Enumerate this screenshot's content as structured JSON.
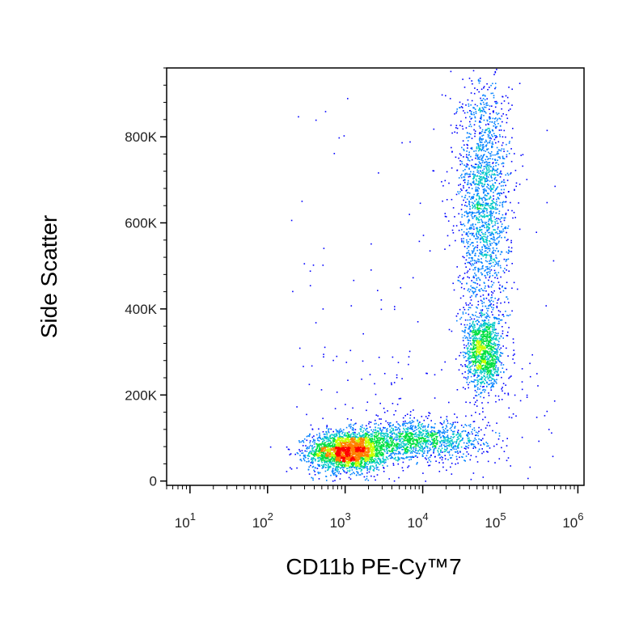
{
  "chart_data": {
    "type": "scatter",
    "title": "",
    "xlabel": "CD11b PE-Cy™7",
    "ylabel": "Side Scatter",
    "x_scale": "log",
    "x_range": [
      5,
      1200000
    ],
    "y_range": [
      -10000,
      960000
    ],
    "x_ticks": [
      {
        "base": "10",
        "exp": "1",
        "value": 10
      },
      {
        "base": "10",
        "exp": "2",
        "value": 100
      },
      {
        "base": "10",
        "exp": "3",
        "value": 1000
      },
      {
        "base": "10",
        "exp": "4",
        "value": 10000
      },
      {
        "base": "10",
        "exp": "5",
        "value": 100000
      },
      {
        "base": "10",
        "exp": "6",
        "value": 1000000
      }
    ],
    "y_ticks": [
      {
        "label": "0",
        "value": 0
      },
      {
        "label": "200K",
        "value": 200000
      },
      {
        "label": "400K",
        "value": 400000
      },
      {
        "label": "600K",
        "value": 600000
      },
      {
        "label": "800K",
        "value": 800000
      }
    ],
    "grid": false,
    "color_scale": [
      "#0000ff",
      "#0080ff",
      "#00c8c8",
      "#00e040",
      "#c8ff00",
      "#ff8000",
      "#ff0000"
    ],
    "populations": [
      {
        "name": "",
        "x_center": 1100,
        "y_center": 70000,
        "x_spread_decades": 0.25,
        "y_spread": 22000,
        "relative_density": 1.0
      },
      {
        "name": "",
        "x_center": 8000,
        "y_center": 95000,
        "x_spread_decades": 0.45,
        "y_spread": 22000,
        "relative_density": 0.5
      },
      {
        "name": "",
        "x_center": 60000,
        "y_center": 650000,
        "x_spread_decades": 0.17,
        "y_spread": 150000,
        "relative_density": 0.7
      },
      {
        "name": "",
        "x_center": 60000,
        "y_center": 300000,
        "x_spread_decades": 0.12,
        "y_spread": 45000,
        "relative_density": 0.45
      }
    ]
  }
}
